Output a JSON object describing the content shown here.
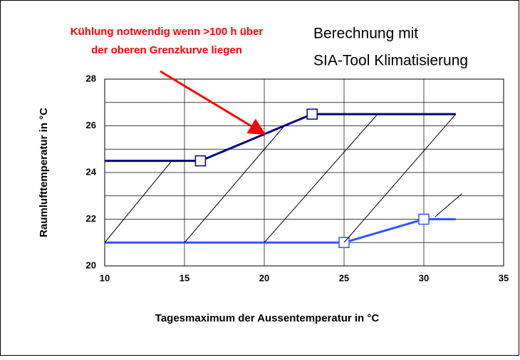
{
  "chart_data": {
    "type": "line",
    "annotation": [
      "Kühlung notwendig wenn >100 h über",
      "der oberen Grenzkurve liegen"
    ],
    "annotation_color": "#ff0000",
    "subtitle": [
      "Berechnung mit",
      "SIA-Tool Klimatisierung"
    ],
    "x_label": "Tagesmaximum der Aussentemperatur in °C",
    "y_label": "Raumlufttemperatur in °C",
    "xlim": [
      10,
      35
    ],
    "xticks": [
      10,
      15,
      20,
      25,
      30,
      35
    ],
    "ylim": [
      20,
      28
    ],
    "yticks": [
      20,
      22,
      24,
      26,
      28
    ],
    "y_minor_ticks": [
      21,
      23,
      25,
      27
    ],
    "grid": true,
    "series": [
      {
        "color": "#000080",
        "width": 3,
        "x": [
          10,
          16,
          23,
          32
        ],
        "values": [
          24.5,
          24.5,
          26.5,
          26.5
        ],
        "marker_indices": [
          1,
          2
        ]
      },
      {
        "color": "#3355ff",
        "width": 3,
        "x": [
          10,
          25,
          30,
          32
        ],
        "values": [
          21,
          21,
          22,
          22
        ],
        "marker_indices": [
          1,
          2
        ]
      },
      {
        "color": "#000000",
        "width": 1,
        "x": [
          10,
          14.2
        ],
        "values": [
          21,
          24.5
        ]
      },
      {
        "color": "#000000",
        "width": 1,
        "x": [
          15,
          21.2
        ],
        "values": [
          21,
          25.95
        ]
      },
      {
        "color": "#000000",
        "width": 1,
        "x": [
          20,
          27.1
        ],
        "values": [
          21,
          26.5
        ]
      },
      {
        "color": "#000000",
        "width": 1,
        "x": [
          25,
          32
        ],
        "values": [
          21,
          26.5
        ]
      },
      {
        "color": "#000000",
        "width": 1,
        "x": [
          30.7,
          32.4
        ],
        "values": [
          22.1,
          23.1
        ]
      }
    ]
  }
}
